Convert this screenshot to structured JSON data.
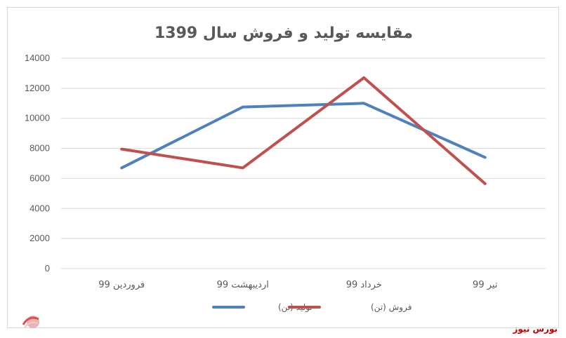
{
  "chart_data": {
    "type": "line",
    "title": "مقایسه تولید و فروش سال 1399",
    "categories": [
      "فروردین 99",
      "اردیبهشت 99",
      "خرداد 99",
      "تیر 99"
    ],
    "series": [
      {
        "name": "تولید (تن)",
        "color": "#4f81bd",
        "values": [
          6700,
          10750,
          11000,
          7400
        ]
      },
      {
        "name": "فروش (تن)",
        "color": "#c0504d",
        "values": [
          7950,
          6700,
          12700,
          5650
        ]
      }
    ],
    "y_ticks": [
      "0",
      "2000",
      "4000",
      "6000",
      "8000",
      "10000",
      "12000",
      "14000"
    ],
    "ylim": [
      0,
      14000
    ],
    "grid": true,
    "legend_position": "bottom"
  },
  "watermark": {
    "icon": "bourse-news-logo-icon",
    "text": "بورس نیوز"
  },
  "brand": {
    "text": "بورس نیوز",
    "color": "#c00000"
  }
}
